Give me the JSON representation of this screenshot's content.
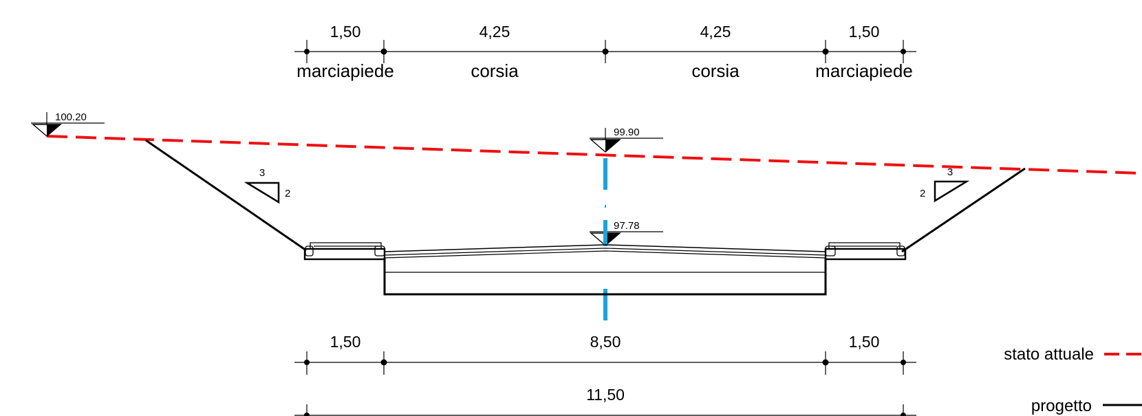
{
  "top_dimensions": {
    "values": [
      "1,50",
      "4,25",
      "4,25",
      "1,50"
    ],
    "zones": [
      "marciapiede",
      "corsia",
      "corsia",
      "marciapiede"
    ]
  },
  "bottom_dimensions": {
    "values": [
      "1,50",
      "8,50",
      "1,50"
    ],
    "total": "11,50"
  },
  "elevations": {
    "left_ground": "100.20",
    "axis_ground": "99.90",
    "axis_project": "97.78"
  },
  "slopes": {
    "left": {
      "top": "3",
      "side": "2"
    },
    "right": {
      "top": "3",
      "side": "2"
    }
  },
  "legend": {
    "existing_label": "stato attuale",
    "existing_color": "#ee1111",
    "project_label": "progetto",
    "project_color": "#000000"
  },
  "axis_color": "#1ba3dc"
}
